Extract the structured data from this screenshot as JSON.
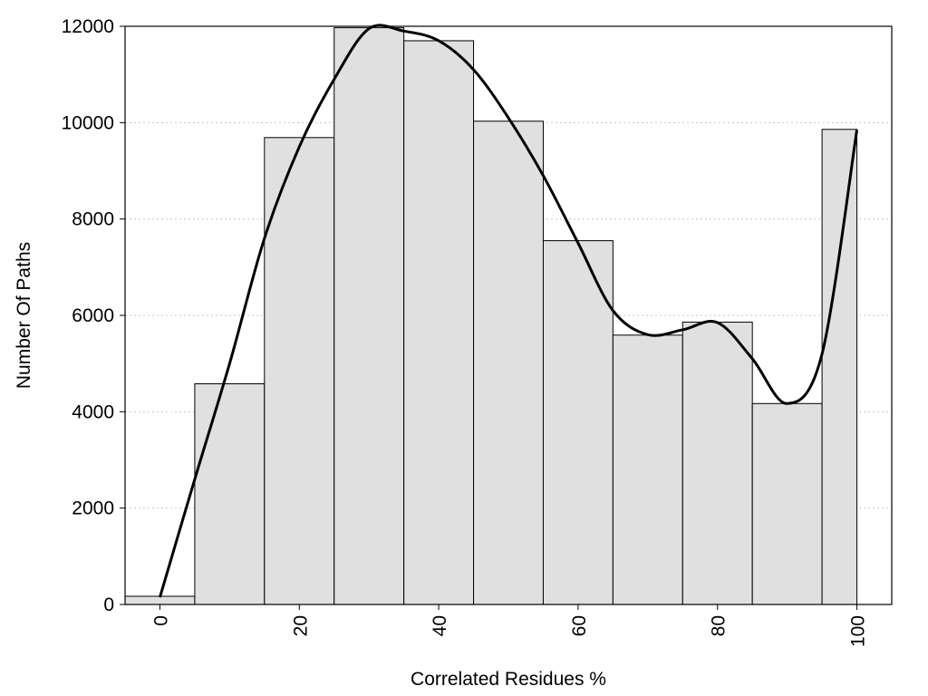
{
  "chart_data": {
    "type": "bar",
    "xlabel": "Correlated Residues %",
    "ylabel": "Number Of Paths",
    "xlim": [
      -5,
      105
    ],
    "ylim": [
      0,
      12000
    ],
    "x_ticks": [
      "0",
      "20",
      "40",
      "60",
      "80",
      "100"
    ],
    "y_ticks": [
      "0",
      "2000",
      "4000",
      "6000",
      "8000",
      "10000",
      "12000"
    ],
    "grid": "horizontal dotted",
    "bar_color": "#e0e0e0",
    "line_color": "#000000",
    "bins": [
      {
        "x0": -5,
        "x1": 5,
        "value": 170
      },
      {
        "x0": 5,
        "x1": 15,
        "value": 4580
      },
      {
        "x0": 15,
        "x1": 25,
        "value": 9690
      },
      {
        "x0": 25,
        "x1": 35,
        "value": 11970
      },
      {
        "x0": 35,
        "x1": 45,
        "value": 11700
      },
      {
        "x0": 45,
        "x1": 55,
        "value": 10030
      },
      {
        "x0": 55,
        "x1": 65,
        "value": 7550
      },
      {
        "x0": 65,
        "x1": 75,
        "value": 5590
      },
      {
        "x0": 75,
        "x1": 85,
        "value": 5860
      },
      {
        "x0": 85,
        "x1": 95,
        "value": 4170
      },
      {
        "x0": 95,
        "x1": 100,
        "value": 9860
      }
    ],
    "smooth_line": {
      "x": [
        0,
        5,
        10,
        15,
        20,
        25,
        30,
        35,
        40,
        45,
        50,
        55,
        60,
        65,
        70,
        75,
        80,
        85,
        90,
        95,
        100
      ],
      "y": [
        150,
        2600,
        5000,
        7600,
        9500,
        10900,
        11950,
        11900,
        11700,
        11100,
        10100,
        8900,
        7500,
        6100,
        5600,
        5700,
        5850,
        5100,
        4170,
        5200,
        9850
      ]
    }
  }
}
